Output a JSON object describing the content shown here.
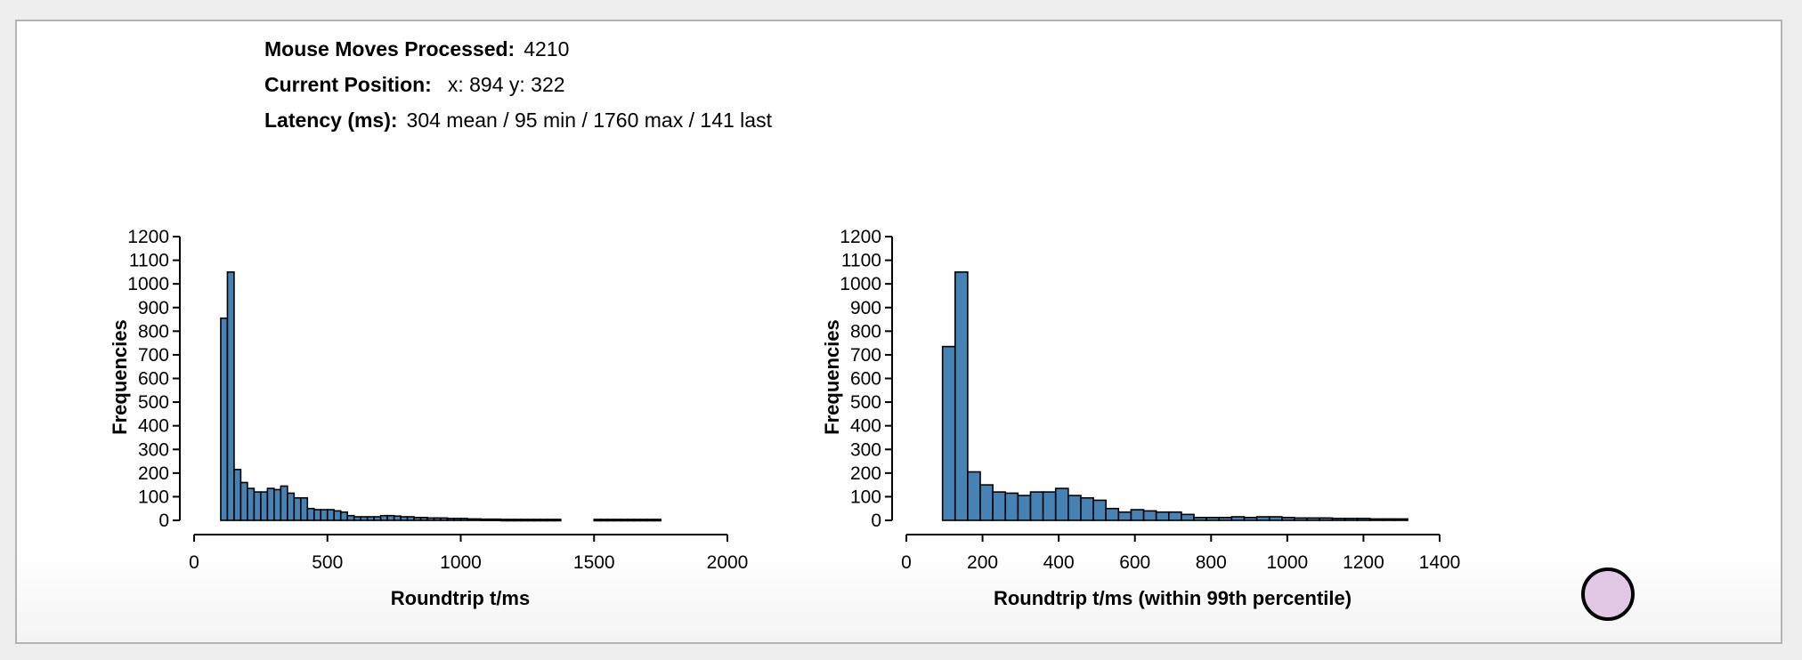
{
  "stats": {
    "moves_label": "Mouse Moves Processed:",
    "moves_value": "4210",
    "position_label": "Current Position:",
    "position_value": "x: 894 y: 322",
    "latency_label": "Latency (ms):",
    "latency_value": "304 mean / 95 min / 1760 max / 141 last"
  },
  "colors": {
    "bar_fill": "#4682b4",
    "cursor_dot": "#e3c8e6"
  },
  "chart_data": [
    {
      "type": "bar",
      "xlabel": "Roundtrip t/ms",
      "ylabel": "Frequencies",
      "xlim": [
        0,
        2000
      ],
      "ylim": [
        0,
        1200
      ],
      "xticks": [
        "0",
        "500",
        "1000",
        "1500",
        "2000"
      ],
      "yticks": [
        "0",
        "100",
        "200",
        "300",
        "400",
        "500",
        "600",
        "700",
        "800",
        "900",
        "1000",
        "1100",
        "1200"
      ],
      "bin_width": 25,
      "bins_start": [
        100,
        125,
        150,
        175,
        200,
        225,
        250,
        275,
        300,
        325,
        350,
        375,
        400,
        425,
        450,
        475,
        500,
        525,
        550,
        575,
        600,
        625,
        650,
        675,
        700,
        725,
        750,
        775,
        800,
        825,
        850,
        875,
        900,
        925,
        950,
        975,
        1000,
        1025,
        1050,
        1075,
        1100,
        1125,
        1150,
        1175,
        1200,
        1225,
        1250,
        1275,
        1300,
        1325,
        1350,
        1375,
        1400,
        1425,
        1450,
        1475,
        1500,
        1525,
        1550,
        1575,
        1600,
        1625,
        1650,
        1675,
        1700,
        1725
      ],
      "values": [
        855,
        1050,
        215,
        160,
        135,
        120,
        120,
        135,
        130,
        145,
        115,
        95,
        95,
        50,
        45,
        45,
        45,
        40,
        35,
        20,
        15,
        15,
        15,
        15,
        20,
        20,
        18,
        15,
        15,
        12,
        12,
        10,
        10,
        10,
        8,
        8,
        8,
        6,
        6,
        5,
        5,
        5,
        4,
        4,
        4,
        4,
        4,
        4,
        4,
        4,
        4,
        0,
        0,
        0,
        0,
        0,
        4,
        4,
        4,
        4,
        4,
        4,
        4,
        4,
        4,
        4
      ]
    },
    {
      "type": "bar",
      "xlabel": "Roundtrip t/ms (within 99th percentile)",
      "ylabel": "Frequencies",
      "xlim": [
        0,
        1400
      ],
      "ylim": [
        0,
        1200
      ],
      "xticks": [
        "0",
        "200",
        "400",
        "600",
        "800",
        "1000",
        "1200",
        "1400"
      ],
      "yticks": [
        "0",
        "100",
        "200",
        "300",
        "400",
        "500",
        "600",
        "700",
        "800",
        "900",
        "1000",
        "1100",
        "1200"
      ],
      "bin_width": 33,
      "bins_start": [
        95,
        128,
        161,
        194,
        227,
        260,
        293,
        326,
        359,
        392,
        425,
        458,
        491,
        524,
        557,
        590,
        623,
        656,
        689,
        722,
        755,
        788,
        821,
        854,
        887,
        920,
        953,
        986,
        1019,
        1052,
        1085,
        1118,
        1151,
        1184,
        1217,
        1250,
        1283
      ],
      "values": [
        735,
        1050,
        205,
        150,
        120,
        115,
        105,
        120,
        120,
        135,
        105,
        95,
        85,
        50,
        35,
        45,
        40,
        35,
        35,
        25,
        12,
        12,
        12,
        15,
        12,
        15,
        15,
        12,
        10,
        10,
        10,
        8,
        8,
        8,
        6,
        6,
        6
      ]
    }
  ]
}
